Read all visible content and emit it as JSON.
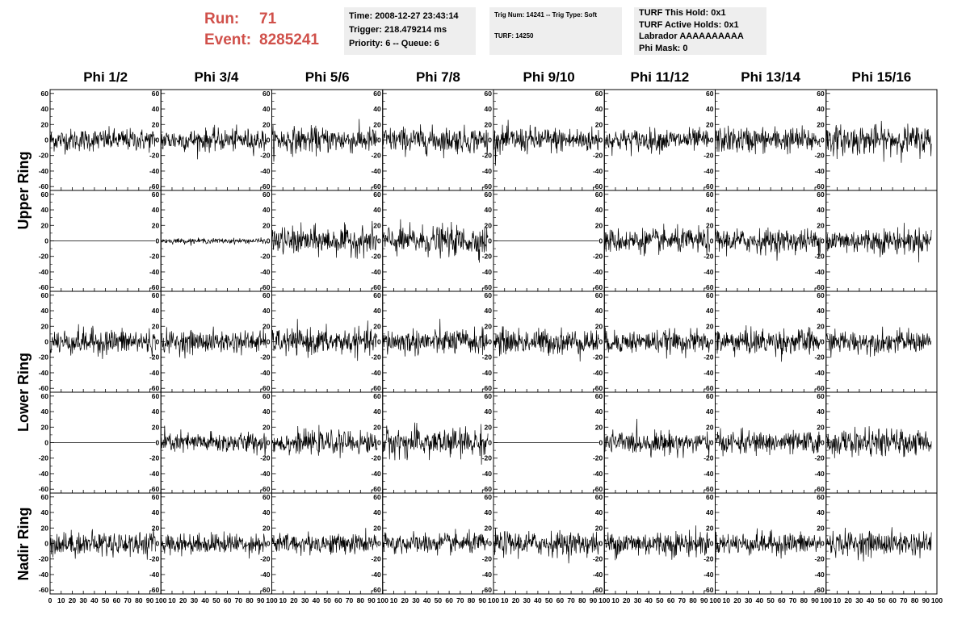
{
  "header": {
    "run_label": "Run:",
    "run_value": "71",
    "event_label": "Event:",
    "event_value": "8285241",
    "time": "Time: 2008-12-27 23:43:14",
    "trigger": "Trigger: 218.479214 ms",
    "priority": "Priority: 6 -- Queue: 6",
    "trig_num": "Trig Num: 14241 -- Trig Type: Soft",
    "turf": "TURF: 14250",
    "turf_this_hold": "TURF This Hold: 0x1",
    "turf_active_holds": "TURF Active Holds: 0x1",
    "labrador": "Labrador AAAAAAAAAA",
    "phi_mask": "Phi Mask: 0"
  },
  "columns": [
    "Phi 1/2",
    "Phi 3/4",
    "Phi 5/6",
    "Phi 7/8",
    "Phi 9/10",
    "Phi 11/12",
    "Phi 13/14",
    "Phi 15/16"
  ],
  "ring_labels": [
    {
      "text": "Upper Ring",
      "rows": [
        0,
        1
      ]
    },
    {
      "text": "Lower Ring",
      "rows": [
        2,
        3
      ]
    },
    {
      "text": "Nadir Ring",
      "rows": [
        4
      ]
    }
  ],
  "chart_data": {
    "type": "line",
    "xlim": [
      0,
      100
    ],
    "ylim": [
      -65,
      65
    ],
    "y_ticks": [
      -60,
      -40,
      -20,
      0,
      20,
      40,
      60
    ],
    "y_tick_labels": [
      "-60",
      "-40",
      "-20",
      "0",
      "20",
      "40",
      "60"
    ],
    "x_ticks": [
      0,
      10,
      20,
      30,
      40,
      50,
      60,
      70,
      80,
      90,
      100
    ],
    "x_tick_labels": [
      "0",
      "10",
      "20",
      "30",
      "40",
      "50",
      "60",
      "70",
      "80",
      "90",
      "100"
    ],
    "grid": false,
    "series_x_range": [
      0,
      95
    ],
    "samples_per_trace": 260,
    "amplitude_note_units": "approximate peak-to-peak in y units per panel (rows top to bottom, columns Phi 1/2 .. Phi 15/16)",
    "amplitudes": [
      [
        13,
        13,
        15,
        15,
        15,
        13,
        15,
        17
      ],
      [
        0,
        3,
        16,
        17,
        0,
        14,
        14,
        15
      ],
      [
        15,
        13,
        15,
        15,
        15,
        13,
        15,
        13
      ],
      [
        0,
        12,
        13,
        17,
        0,
        13,
        13,
        15
      ],
      [
        14,
        12,
        12,
        12,
        14,
        15,
        13,
        14
      ]
    ]
  }
}
